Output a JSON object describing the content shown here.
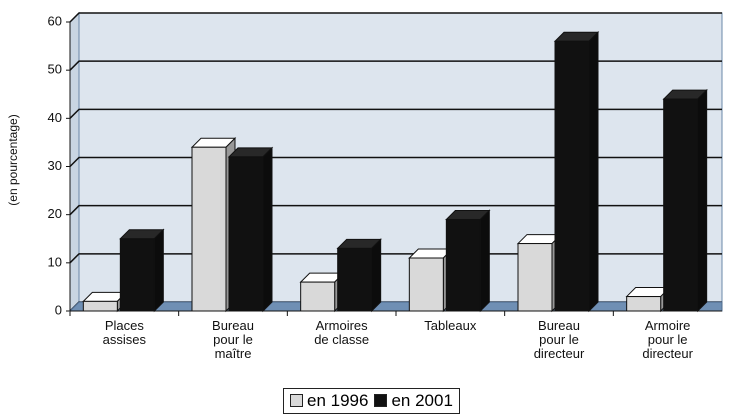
{
  "chart_data": {
    "type": "bar",
    "y_label": "(en pourcentage)",
    "categories": [
      "Places\nassises",
      "Bureau\npour le\nmaître",
      "Armoires\nde classe",
      "Tableaux",
      "Bureau\npour le\ndirecteur",
      "Armoire\npour le\ndirecteur"
    ],
    "series": [
      {
        "name": "en 1996",
        "color": "#d9d9d9",
        "values": [
          2,
          34,
          6,
          11,
          14,
          3
        ]
      },
      {
        "name": "en 2001",
        "color": "#111111",
        "values": [
          15,
          32,
          13,
          19,
          56,
          44
        ]
      }
    ],
    "ylim": [
      0,
      60
    ],
    "yticks": [
      0,
      10,
      20,
      30,
      40,
      50,
      60
    ],
    "grid": true
  }
}
